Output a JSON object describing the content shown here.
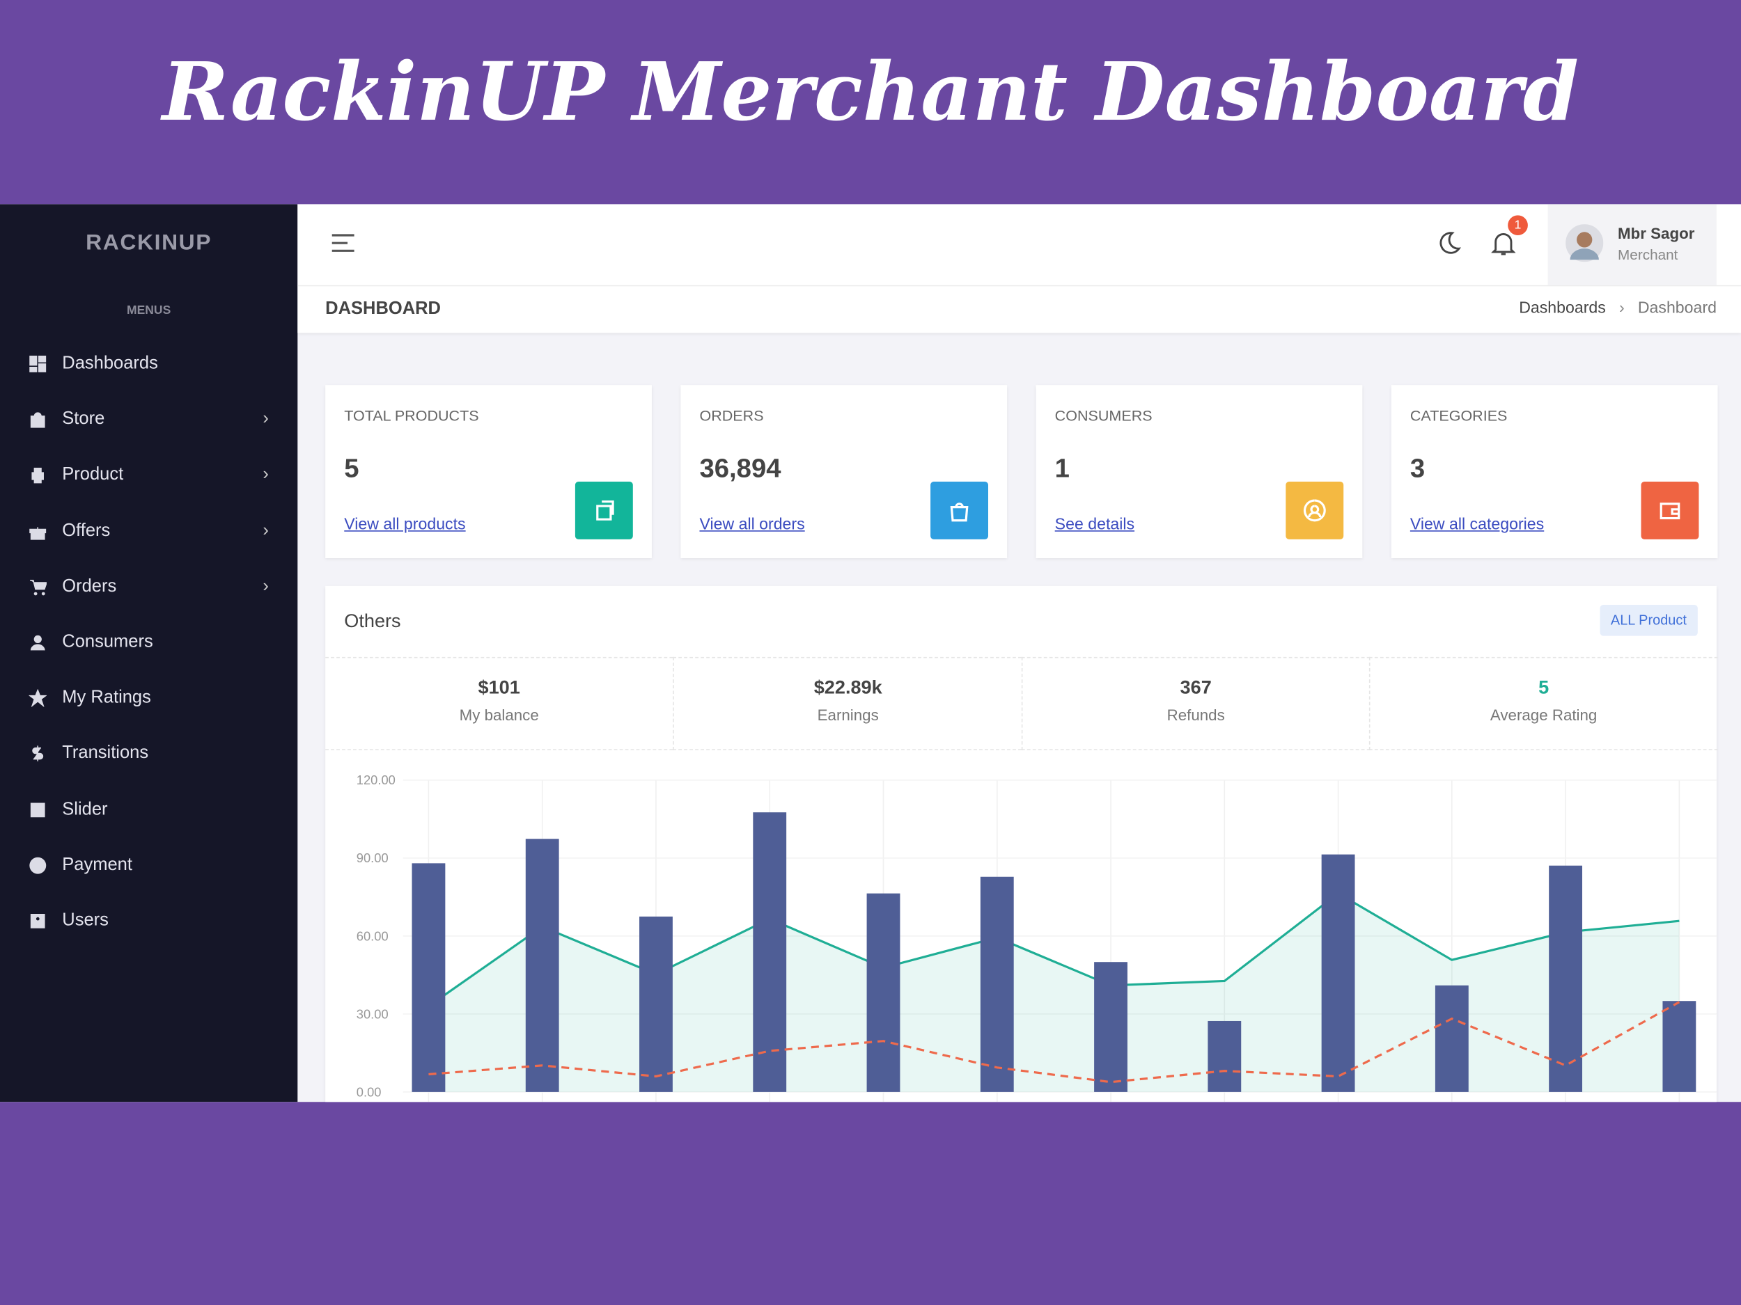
{
  "header": {
    "title": "RackinUP Merchant Dashboard"
  },
  "sidebar": {
    "brand": "RACKINUP",
    "menu_label": "MENUS",
    "items": [
      {
        "label": "Dashboards",
        "submenu": false
      },
      {
        "label": "Store",
        "submenu": true
      },
      {
        "label": "Product",
        "submenu": true
      },
      {
        "label": "Offers",
        "submenu": true
      },
      {
        "label": "Orders",
        "submenu": true
      },
      {
        "label": "Consumers",
        "submenu": false
      },
      {
        "label": "My Ratings",
        "submenu": false
      },
      {
        "label": "Transitions",
        "submenu": false
      },
      {
        "label": "Slider",
        "submenu": false
      },
      {
        "label": "Payment",
        "submenu": false
      },
      {
        "label": "Users",
        "submenu": false
      }
    ]
  },
  "topbar": {
    "notification_count": "1",
    "user": {
      "name": "Mbr Sagor",
      "role": "Merchant"
    }
  },
  "page": {
    "title": "DASHBOARD",
    "breadcrumb": [
      "Dashboards",
      "Dashboard"
    ]
  },
  "cards": [
    {
      "label": "TOTAL PRODUCTS",
      "value": "5",
      "link": "View all products",
      "color": "#12b59a"
    },
    {
      "label": "ORDERS",
      "value": "36,894",
      "link": "View all orders",
      "color": "#2e9ee0"
    },
    {
      "label": "CONSUMERS",
      "value": "1",
      "link": "See details",
      "color": "#f4b942"
    },
    {
      "label": "CATEGORIES",
      "value": "3",
      "link": "View all categories",
      "color": "#ef6442"
    }
  ],
  "others": {
    "title": "Others",
    "button": "ALL Product",
    "stats": [
      {
        "value": "$101",
        "label": "My balance"
      },
      {
        "value": "$22.89k",
        "label": "Earnings"
      },
      {
        "value": "367",
        "label": "Refunds"
      },
      {
        "value": "5",
        "label": "Average Rating"
      }
    ]
  },
  "chart": {
    "type": "bar-line",
    "ylim": [
      0,
      120
    ],
    "yticks": [
      {
        "value": 0,
        "label": "0.00"
      },
      {
        "value": 30,
        "label": "30.00"
      },
      {
        "value": 60,
        "label": "60.00"
      },
      {
        "value": 90,
        "label": "90.00"
      },
      {
        "value": 120,
        "label": "120.00"
      }
    ],
    "series": [
      {
        "kind": "bar",
        "color": "#4f5e96",
        "values": [
          88,
          97.4,
          67.5,
          107.6,
          76.4,
          82.8,
          50,
          27.3,
          91.4,
          41,
          87.1,
          35
        ]
      },
      {
        "kind": "area",
        "color": "#1fae95",
        "values": [
          33,
          63.6,
          45.3,
          66.6,
          47.8,
          59.4,
          41,
          42.7,
          76.4,
          50.8,
          61.5,
          65.8
        ]
      },
      {
        "kind": "dashed",
        "color": "#ee6a4c",
        "values": [
          6.8,
          10.2,
          6,
          15.8,
          19.6,
          9.4,
          3.8,
          8.1,
          6,
          28.2,
          10.2,
          34.6
        ]
      }
    ]
  }
}
